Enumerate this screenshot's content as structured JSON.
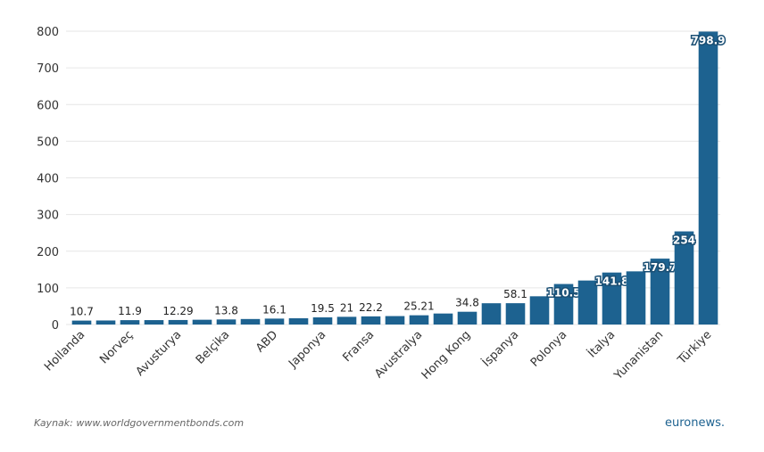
{
  "chart_data": {
    "type": "bar",
    "categories": [
      "Hollanda",
      null,
      "Norveç",
      null,
      "Avusturya",
      null,
      "Belçika",
      null,
      "ABD",
      null,
      "Japonya",
      null,
      "Fransa",
      null,
      "Avustralya",
      null,
      "Hong Kong",
      null,
      "İspanya",
      null,
      "Polonya",
      null,
      "İtalya",
      null,
      "Yunanistan",
      null,
      "Türkiye"
    ],
    "values": [
      10.7,
      11,
      11.9,
      12,
      12.29,
      13,
      13.8,
      15,
      16.1,
      17,
      19.5,
      21,
      22.2,
      23,
      25.21,
      30,
      34.8,
      58,
      58.1,
      77,
      110.5,
      120,
      141.8,
      145,
      179.7,
      254,
      798.9
    ],
    "value_labels": [
      "10.7",
      null,
      "11.9",
      null,
      "12.29",
      null,
      "13.8",
      null,
      "16.1",
      null,
      "19.5",
      "21",
      "22.2",
      null,
      "25.21",
      null,
      "34.8",
      null,
      "58.1",
      null,
      "110.5",
      null,
      "141.8",
      null,
      "179.7",
      "254",
      "798.9"
    ],
    "color": "#1d6290",
    "ylim": [
      0,
      800
    ],
    "yticks": [
      0,
      100,
      200,
      300,
      400,
      500,
      600,
      700,
      800
    ],
    "grid": true,
    "source": "Kaynak: www.worldgovernmentbonds.com",
    "logo": "euronews."
  }
}
